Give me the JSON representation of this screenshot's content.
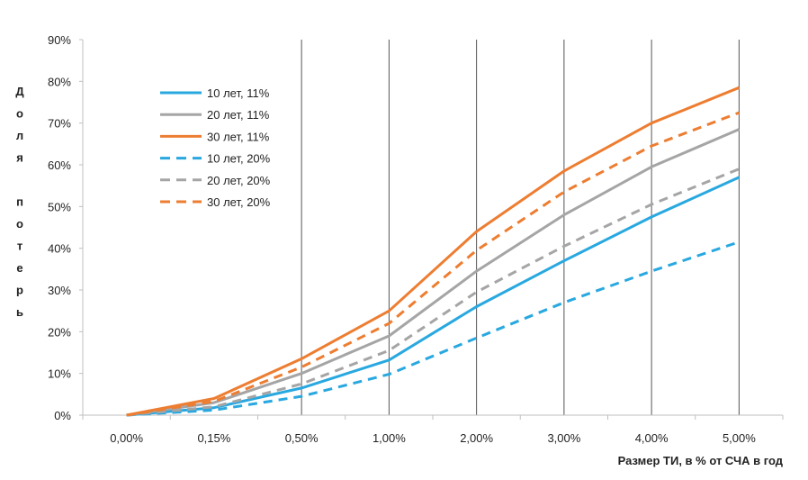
{
  "chart_data": {
    "type": "line",
    "title": "",
    "xlabel": "Размер ТИ, в % от СЧА в год",
    "ylabel": "Доля потерь",
    "ylabel_words": [
      "Доля",
      "потерь"
    ],
    "categories": [
      "0,00%",
      "0,15%",
      "0,50%",
      "1,00%",
      "2,00%",
      "3,00%",
      "4,00%",
      "5,00%"
    ],
    "ylim": [
      0,
      90
    ],
    "yticks": [
      0,
      10,
      20,
      30,
      40,
      50,
      60,
      70,
      80,
      90
    ],
    "ytick_labels": [
      "0%",
      "10%",
      "20%",
      "30%",
      "40%",
      "50%",
      "60%",
      "70%",
      "80%",
      "90%"
    ],
    "legend_position": "upper-left",
    "series": [
      {
        "name": "10 лет, 11%",
        "color": "#29a8e0",
        "dash": "solid",
        "values": [
          0,
          1.8,
          6.5,
          13.2,
          26,
          37,
          47.5,
          57
        ]
      },
      {
        "name": "20 лет, 11%",
        "color": "#a5a5a5",
        "dash": "solid",
        "values": [
          0,
          3.0,
          10.0,
          19.0,
          34.5,
          48,
          59.5,
          68.5
        ]
      },
      {
        "name": "30 лет, 11%",
        "color": "#ed7d31",
        "dash": "solid",
        "values": [
          0,
          4.0,
          13.5,
          25,
          44,
          58.5,
          70,
          78.5
        ]
      },
      {
        "name": "10 лет, 20%",
        "color": "#29a8e0",
        "dash": "dashed",
        "values": [
          0,
          1.2,
          4.5,
          9.8,
          18.5,
          27,
          34.5,
          41.5
        ]
      },
      {
        "name": "20 лет, 20%",
        "color": "#a5a5a5",
        "dash": "dashed",
        "values": [
          0,
          2.0,
          7.5,
          15.5,
          29.5,
          40.5,
          50.5,
          59
        ]
      },
      {
        "name": "30 лет, 20%",
        "color": "#ed7d31",
        "dash": "dashed",
        "values": [
          0,
          3.3,
          11.5,
          22.0,
          39.5,
          53.5,
          64.5,
          72.5
        ]
      }
    ]
  }
}
